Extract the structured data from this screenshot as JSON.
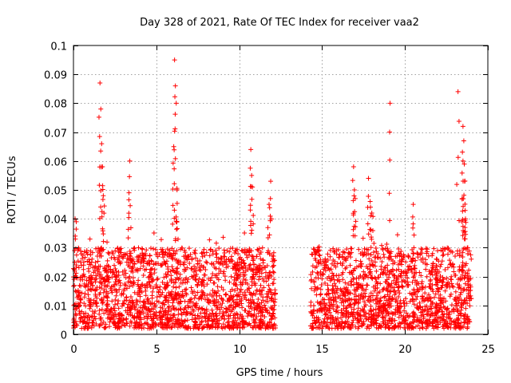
{
  "chart_data": {
    "type": "scatter",
    "title": "Day 328 of 2021, Rate Of TEC Index for receiver vaa2",
    "xlabel": "GPS time / hours",
    "ylabel": "ROTI / TECUs",
    "xlim": [
      0,
      25
    ],
    "ylim": [
      0,
      0.1
    ],
    "xticks": [
      0,
      5,
      10,
      15,
      20,
      25
    ],
    "xtick_labels": [
      "0",
      "5",
      "10",
      "15",
      "20",
      "25"
    ],
    "yticks": [
      0,
      0.01,
      0.02,
      0.03,
      0.04,
      0.05,
      0.06,
      0.07,
      0.08,
      0.09,
      0.1
    ],
    "ytick_labels": [
      "0",
      "0.01",
      "0.02",
      "0.03",
      "0.04",
      "0.05",
      "0.06",
      "0.07",
      "0.08",
      "0.09",
      "0.1"
    ],
    "grid": true,
    "marker": "+",
    "marker_color": "#ff0000",
    "series": [
      {
        "name": "vaa2",
        "segments": [
          {
            "x_range": [
              0.0,
              12.2
            ],
            "typical_range": [
              0.002,
              0.03
            ]
          },
          {
            "x_range": [
              14.3,
              24.0
            ],
            "typical_range": [
              0.002,
              0.03
            ]
          }
        ],
        "peaks": [
          {
            "x": 0.1,
            "y": 0.04
          },
          {
            "x": 1.6,
            "y": 0.087
          },
          {
            "x": 1.65,
            "y": 0.078
          },
          {
            "x": 1.7,
            "y": 0.066
          },
          {
            "x": 1.75,
            "y": 0.058
          },
          {
            "x": 1.8,
            "y": 0.048
          },
          {
            "x": 3.4,
            "y": 0.06
          },
          {
            "x": 3.35,
            "y": 0.049
          },
          {
            "x": 6.1,
            "y": 0.095
          },
          {
            "x": 6.15,
            "y": 0.086
          },
          {
            "x": 6.2,
            "y": 0.08
          },
          {
            "x": 6.05,
            "y": 0.065
          },
          {
            "x": 6.25,
            "y": 0.05
          },
          {
            "x": 6.2,
            "y": 0.039
          },
          {
            "x": 10.7,
            "y": 0.064
          },
          {
            "x": 10.75,
            "y": 0.055
          },
          {
            "x": 10.8,
            "y": 0.051
          },
          {
            "x": 11.9,
            "y": 0.053
          },
          {
            "x": 11.8,
            "y": 0.045
          },
          {
            "x": 16.9,
            "y": 0.058
          },
          {
            "x": 16.95,
            "y": 0.05
          },
          {
            "x": 17.0,
            "y": 0.047
          },
          {
            "x": 17.8,
            "y": 0.054
          },
          {
            "x": 17.9,
            "y": 0.046
          },
          {
            "x": 18.0,
            "y": 0.042
          },
          {
            "x": 19.1,
            "y": 0.08
          },
          {
            "x": 20.5,
            "y": 0.045
          },
          {
            "x": 23.2,
            "y": 0.084
          },
          {
            "x": 23.5,
            "y": 0.072
          },
          {
            "x": 23.55,
            "y": 0.067
          },
          {
            "x": 23.5,
            "y": 0.06
          },
          {
            "x": 23.6,
            "y": 0.053
          },
          {
            "x": 23.45,
            "y": 0.047
          },
          {
            "x": 23.65,
            "y": 0.04
          }
        ]
      }
    ]
  }
}
